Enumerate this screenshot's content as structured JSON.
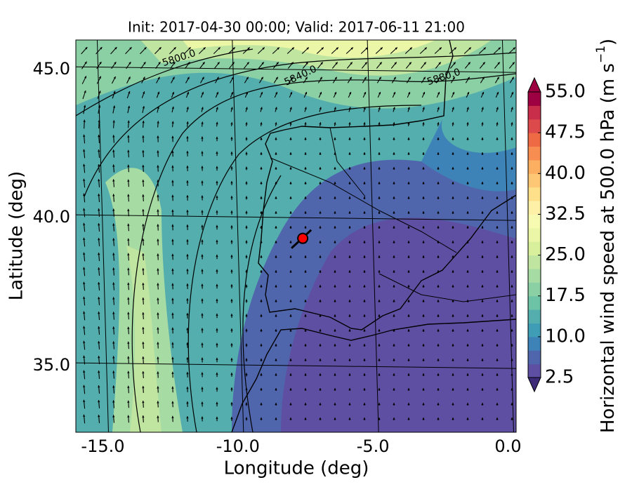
{
  "chart_data": {
    "type": "map",
    "title": "Init: 2017-04-30 00:00; Valid: 2017-06-11 21:00",
    "x_label": "Longitude (deg)",
    "y_label": "Latitude (deg)",
    "xlim": [
      -16,
      0.3
    ],
    "ylim": [
      32.75,
      46
    ],
    "xticks": [
      {
        "value": -15,
        "label": "-15.0"
      },
      {
        "value": -10,
        "label": "-10.0"
      },
      {
        "value": -5,
        "label": "-5.0"
      },
      {
        "value": 0,
        "label": "0.0"
      }
    ],
    "yticks": [
      {
        "value": 35,
        "label": "35.0"
      },
      {
        "value": 40,
        "label": "40.0"
      },
      {
        "value": 45,
        "label": "45.0"
      }
    ],
    "grid": true,
    "contour_labels": [
      "5800.0",
      "5840.0",
      "5880.0"
    ],
    "marker": {
      "x": -7.6,
      "y": 39.3,
      "color": "#ff0000"
    },
    "colorbar": {
      "label": "Horizontal wind speed at 500.0 hPa (m s",
      "label_sup": "−1",
      "label_end": ")",
      "lim": [
        2.5,
        55
      ],
      "ticks": [
        2.5,
        {
          "value": 10,
          "label": "10.0"
        },
        17.5,
        {
          "value": 25,
          "label": "25.0"
        },
        32.5,
        {
          "value": 40,
          "label": "40.0"
        },
        47.5,
        {
          "value": 55,
          "label": "55.0"
        }
      ],
      "colors": [
        "#5e4fa2",
        "#4f66ad",
        "#3e83b8",
        "#3f9eb6",
        "#54aead",
        "#6cc3a5",
        "#8bcfa4",
        "#a6dba4",
        "#c0e5a0",
        "#d8ef9c",
        "#ebf7a6",
        "#f7fbb2",
        "#fef1a7",
        "#fee08b",
        "#fdc776",
        "#fcae61",
        "#f88d52",
        "#ee6a44",
        "#dd4a4c",
        "#c82e4a",
        "#9e0142"
      ]
    }
  }
}
